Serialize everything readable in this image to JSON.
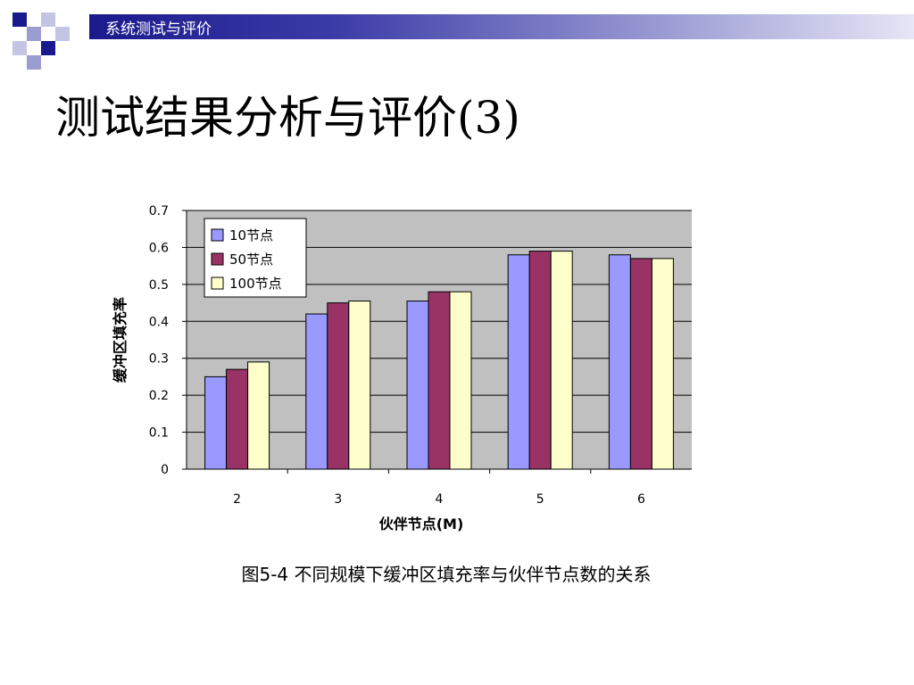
{
  "header": {
    "title": "系统测试与评价"
  },
  "slide": {
    "title": "测试结果分析与评价(3)"
  },
  "caption": "图5-4 不同规模下缓冲区填充率与伙伴节点数的关系",
  "colors": {
    "series": [
      "#9999ff",
      "#993366",
      "#ffffcc"
    ],
    "plot_bg": "#c0c0c0",
    "header": "#1a1a8c"
  },
  "chart_data": {
    "type": "bar",
    "categories": [
      "2",
      "3",
      "4",
      "5",
      "6"
    ],
    "series": [
      {
        "name": "10节点",
        "values": [
          0.25,
          0.42,
          0.455,
          0.58,
          0.58
        ]
      },
      {
        "name": "50节点",
        "values": [
          0.27,
          0.45,
          0.48,
          0.59,
          0.57
        ]
      },
      {
        "name": "100节点",
        "values": [
          0.29,
          0.455,
          0.48,
          0.59,
          0.57
        ]
      }
    ],
    "xlabel": "伙伴节点(M)",
    "ylabel": "缓冲区填充率",
    "ylim": [
      0,
      0.7
    ],
    "yticks": [
      "0",
      "0.1",
      "0.2",
      "0.3",
      "0.4",
      "0.5",
      "0.6",
      "0.7"
    ],
    "grid": true,
    "legend_position": "top-left"
  }
}
